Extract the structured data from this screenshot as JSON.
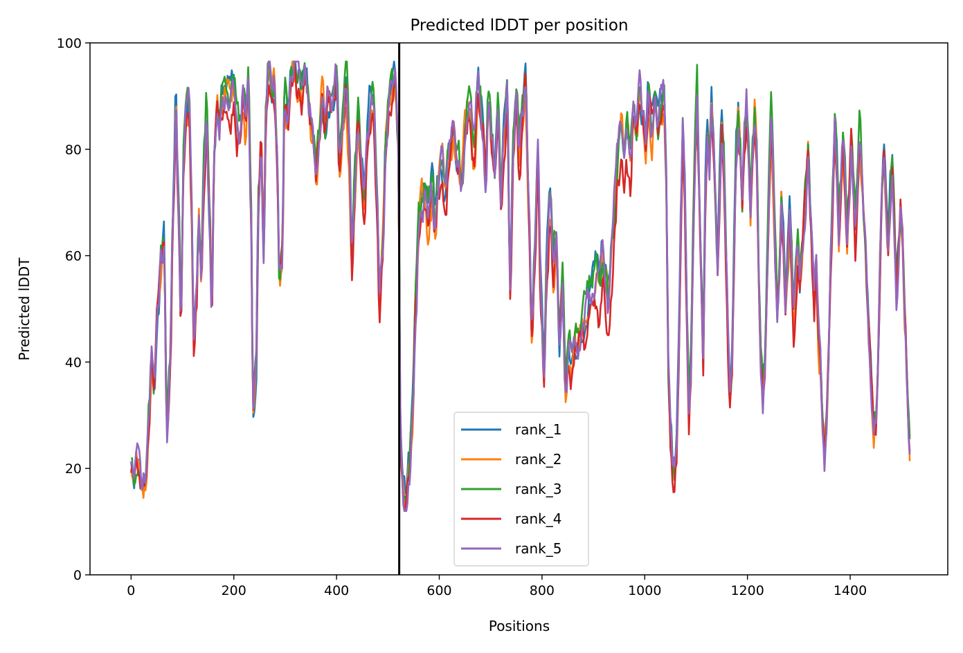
{
  "chart_data": {
    "type": "line",
    "title": "Predicted lDDT per position",
    "xlabel": "Positions",
    "ylabel": "Predicted lDDT",
    "xlim": [
      -80,
      1590
    ],
    "ylim": [
      0,
      100
    ],
    "xticks": [
      0,
      200,
      400,
      600,
      800,
      1000,
      1200,
      1400
    ],
    "yticks": [
      0,
      20,
      40,
      60,
      80,
      100
    ],
    "grid": false,
    "legend_position": "lower-center",
    "vline_x": 522,
    "vline_color": "#000000",
    "n_positions": 1517,
    "anchors": [
      [
        0,
        22
      ],
      [
        5,
        19
      ],
      [
        10,
        22
      ],
      [
        15,
        21
      ],
      [
        20,
        17
      ],
      [
        28,
        18
      ],
      [
        35,
        30
      ],
      [
        40,
        42
      ],
      [
        45,
        35
      ],
      [
        52,
        50
      ],
      [
        58,
        58
      ],
      [
        64,
        62
      ],
      [
        70,
        28
      ],
      [
        76,
        40
      ],
      [
        82,
        70
      ],
      [
        87,
        88
      ],
      [
        92,
        72
      ],
      [
        97,
        50
      ],
      [
        103,
        80
      ],
      [
        108,
        89
      ],
      [
        113,
        88
      ],
      [
        118,
        70
      ],
      [
        122,
        45
      ],
      [
        127,
        55
      ],
      [
        132,
        68
      ],
      [
        137,
        58
      ],
      [
        142,
        76
      ],
      [
        147,
        87
      ],
      [
        152,
        70
      ],
      [
        157,
        50
      ],
      [
        162,
        80
      ],
      [
        167,
        88
      ],
      [
        172,
        84
      ],
      [
        178,
        90
      ],
      [
        186,
        93
      ],
      [
        194,
        90
      ],
      [
        200,
        92
      ],
      [
        206,
        84
      ],
      [
        212,
        82
      ],
      [
        218,
        90
      ],
      [
        223,
        85
      ],
      [
        228,
        92
      ],
      [
        233,
        70
      ],
      [
        238,
        30
      ],
      [
        243,
        38
      ],
      [
        248,
        70
      ],
      [
        253,
        80
      ],
      [
        258,
        62
      ],
      [
        263,
        87
      ],
      [
        268,
        95
      ],
      [
        273,
        90
      ],
      [
        278,
        93
      ],
      [
        284,
        80
      ],
      [
        289,
        56
      ],
      [
        294,
        60
      ],
      [
        299,
        90
      ],
      [
        305,
        86
      ],
      [
        311,
        94
      ],
      [
        318,
        96
      ],
      [
        325,
        92
      ],
      [
        332,
        90
      ],
      [
        340,
        94
      ],
      [
        347,
        88
      ],
      [
        354,
        82
      ],
      [
        360,
        75
      ],
      [
        366,
        82
      ],
      [
        372,
        90
      ],
      [
        378,
        85
      ],
      [
        384,
        90
      ],
      [
        392,
        88
      ],
      [
        400,
        93
      ],
      [
        406,
        78
      ],
      [
        412,
        86
      ],
      [
        418,
        94
      ],
      [
        424,
        82
      ],
      [
        430,
        60
      ],
      [
        436,
        74
      ],
      [
        442,
        86
      ],
      [
        448,
        78
      ],
      [
        454,
        70
      ],
      [
        460,
        82
      ],
      [
        466,
        88
      ],
      [
        472,
        90
      ],
      [
        478,
        74
      ],
      [
        484,
        52
      ],
      [
        490,
        62
      ],
      [
        496,
        82
      ],
      [
        502,
        88
      ],
      [
        508,
        92
      ],
      [
        514,
        94
      ],
      [
        520,
        80
      ],
      [
        525,
        25
      ],
      [
        530,
        16
      ],
      [
        536,
        15
      ],
      [
        542,
        20
      ],
      [
        548,
        30
      ],
      [
        554,
        50
      ],
      [
        560,
        65
      ],
      [
        566,
        70
      ],
      [
        572,
        72
      ],
      [
        578,
        68
      ],
      [
        585,
        74
      ],
      [
        592,
        66
      ],
      [
        598,
        72
      ],
      [
        604,
        78
      ],
      [
        612,
        70
      ],
      [
        620,
        80
      ],
      [
        628,
        84
      ],
      [
        636,
        78
      ],
      [
        644,
        72
      ],
      [
        652,
        86
      ],
      [
        660,
        90
      ],
      [
        668,
        80
      ],
      [
        676,
        92
      ],
      [
        684,
        86
      ],
      [
        690,
        75
      ],
      [
        696,
        90
      ],
      [
        702,
        82
      ],
      [
        708,
        75
      ],
      [
        714,
        88
      ],
      [
        720,
        70
      ],
      [
        726,
        82
      ],
      [
        732,
        90
      ],
      [
        738,
        55
      ],
      [
        744,
        80
      ],
      [
        750,
        88
      ],
      [
        756,
        78
      ],
      [
        762,
        86
      ],
      [
        768,
        92
      ],
      [
        774,
        70
      ],
      [
        780,
        45
      ],
      [
        786,
        60
      ],
      [
        792,
        78
      ],
      [
        798,
        52
      ],
      [
        804,
        40
      ],
      [
        810,
        60
      ],
      [
        816,
        70
      ],
      [
        822,
        58
      ],
      [
        828,
        64
      ],
      [
        834,
        45
      ],
      [
        840,
        55
      ],
      [
        846,
        35
      ],
      [
        852,
        42
      ],
      [
        858,
        40
      ],
      [
        864,
        44
      ],
      [
        870,
        42
      ],
      [
        876,
        46
      ],
      [
        882,
        48
      ],
      [
        888,
        52
      ],
      [
        894,
        55
      ],
      [
        900,
        56
      ],
      [
        906,
        58
      ],
      [
        912,
        54
      ],
      [
        918,
        60
      ],
      [
        924,
        56
      ],
      [
        930,
        52
      ],
      [
        936,
        62
      ],
      [
        942,
        70
      ],
      [
        948,
        80
      ],
      [
        954,
        85
      ],
      [
        960,
        78
      ],
      [
        966,
        82
      ],
      [
        972,
        76
      ],
      [
        978,
        88
      ],
      [
        984,
        84
      ],
      [
        990,
        90
      ],
      [
        996,
        86
      ],
      [
        1002,
        80
      ],
      [
        1008,
        90
      ],
      [
        1014,
        84
      ],
      [
        1020,
        92
      ],
      [
        1026,
        86
      ],
      [
        1032,
        88
      ],
      [
        1038,
        90
      ],
      [
        1042,
        75
      ],
      [
        1046,
        40
      ],
      [
        1050,
        28
      ],
      [
        1054,
        22
      ],
      [
        1058,
        20
      ],
      [
        1062,
        24
      ],
      [
        1066,
        40
      ],
      [
        1070,
        64
      ],
      [
        1074,
        84
      ],
      [
        1078,
        72
      ],
      [
        1082,
        48
      ],
      [
        1086,
        30
      ],
      [
        1090,
        38
      ],
      [
        1094,
        62
      ],
      [
        1098,
        80
      ],
      [
        1102,
        90
      ],
      [
        1106,
        72
      ],
      [
        1110,
        55
      ],
      [
        1114,
        40
      ],
      [
        1118,
        70
      ],
      [
        1122,
        84
      ],
      [
        1126,
        78
      ],
      [
        1130,
        88
      ],
      [
        1134,
        82
      ],
      [
        1138,
        70
      ],
      [
        1142,
        58
      ],
      [
        1146,
        72
      ],
      [
        1150,
        84
      ],
      [
        1154,
        78
      ],
      [
        1158,
        60
      ],
      [
        1162,
        45
      ],
      [
        1166,
        32
      ],
      [
        1170,
        40
      ],
      [
        1174,
        62
      ],
      [
        1178,
        80
      ],
      [
        1182,
        86
      ],
      [
        1186,
        80
      ],
      [
        1190,
        70
      ],
      [
        1194,
        82
      ],
      [
        1198,
        88
      ],
      [
        1202,
        80
      ],
      [
        1206,
        68
      ],
      [
        1210,
        78
      ],
      [
        1214,
        86
      ],
      [
        1218,
        80
      ],
      [
        1222,
        56
      ],
      [
        1226,
        40
      ],
      [
        1230,
        34
      ],
      [
        1234,
        38
      ],
      [
        1238,
        56
      ],
      [
        1242,
        72
      ],
      [
        1246,
        84
      ],
      [
        1250,
        76
      ],
      [
        1254,
        60
      ],
      [
        1258,
        48
      ],
      [
        1262,
        56
      ],
      [
        1266,
        70
      ],
      [
        1270,
        62
      ],
      [
        1274,
        50
      ],
      [
        1278,
        58
      ],
      [
        1282,
        66
      ],
      [
        1286,
        58
      ],
      [
        1290,
        48
      ],
      [
        1294,
        54
      ],
      [
        1298,
        60
      ],
      [
        1302,
        52
      ],
      [
        1306,
        58
      ],
      [
        1310,
        66
      ],
      [
        1314,
        72
      ],
      [
        1318,
        80
      ],
      [
        1322,
        70
      ],
      [
        1326,
        60
      ],
      [
        1330,
        50
      ],
      [
        1334,
        58
      ],
      [
        1338,
        46
      ],
      [
        1342,
        40
      ],
      [
        1346,
        28
      ],
      [
        1350,
        22
      ],
      [
        1354,
        26
      ],
      [
        1358,
        40
      ],
      [
        1362,
        58
      ],
      [
        1366,
        72
      ],
      [
        1370,
        84
      ],
      [
        1374,
        78
      ],
      [
        1378,
        64
      ],
      [
        1382,
        72
      ],
      [
        1386,
        80
      ],
      [
        1390,
        74
      ],
      [
        1394,
        62
      ],
      [
        1398,
        70
      ],
      [
        1402,
        80
      ],
      [
        1406,
        74
      ],
      [
        1410,
        64
      ],
      [
        1414,
        72
      ],
      [
        1418,
        82
      ],
      [
        1422,
        76
      ],
      [
        1426,
        68
      ],
      [
        1430,
        60
      ],
      [
        1434,
        50
      ],
      [
        1438,
        42
      ],
      [
        1442,
        34
      ],
      [
        1446,
        28
      ],
      [
        1450,
        30
      ],
      [
        1454,
        40
      ],
      [
        1458,
        58
      ],
      [
        1462,
        74
      ],
      [
        1466,
        80
      ],
      [
        1470,
        70
      ],
      [
        1474,
        62
      ],
      [
        1478,
        72
      ],
      [
        1482,
        78
      ],
      [
        1486,
        66
      ],
      [
        1490,
        54
      ],
      [
        1494,
        60
      ],
      [
        1498,
        68
      ],
      [
        1502,
        62
      ],
      [
        1506,
        50
      ],
      [
        1510,
        40
      ],
      [
        1514,
        28
      ],
      [
        1517,
        23
      ]
    ],
    "series": [
      {
        "name": "rank_1",
        "color": "#1f77b4",
        "seed": 11,
        "shift": 0.6
      },
      {
        "name": "rank_2",
        "color": "#ff7f0e",
        "seed": 23,
        "shift": -0.8
      },
      {
        "name": "rank_3",
        "color": "#2ca02c",
        "seed": 37,
        "shift": 1.2
      },
      {
        "name": "rank_4",
        "color": "#d62728",
        "seed": 51,
        "shift": -1.6
      },
      {
        "name": "rank_5",
        "color": "#9467bd",
        "seed": 71,
        "shift": 0.0
      }
    ]
  }
}
